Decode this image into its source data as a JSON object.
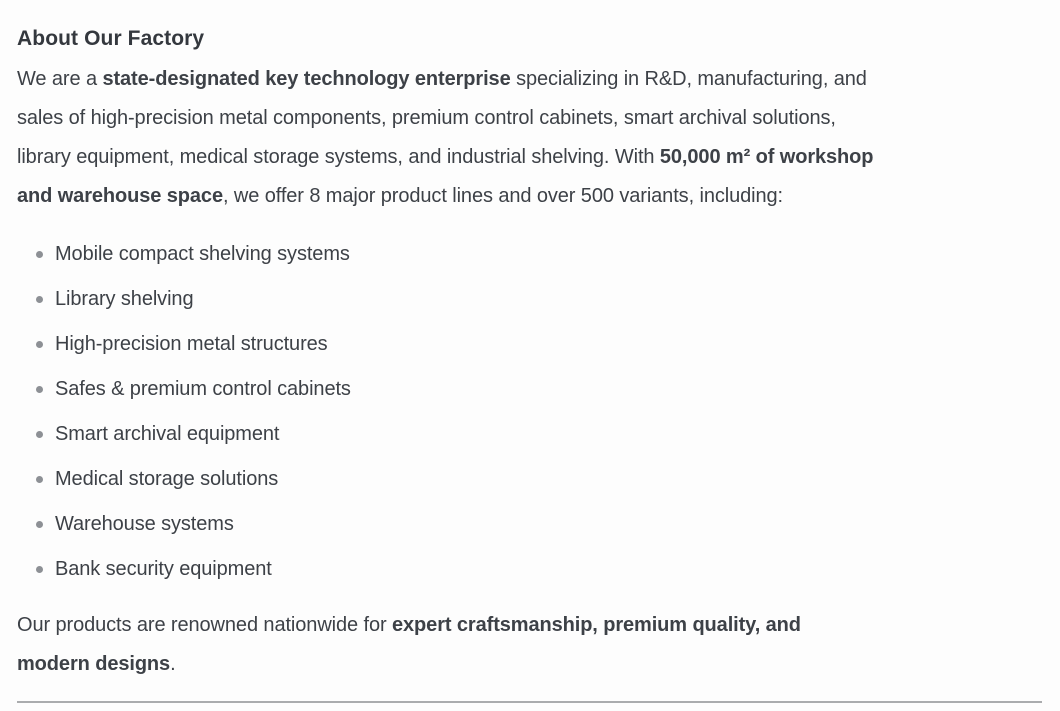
{
  "section": {
    "title": "About Our Factory"
  },
  "intro": {
    "lines": [
      [
        {
          "t": "We are a ",
          "b": 0
        },
        {
          "t": "state-designated key technology enterprise",
          "b": 1
        },
        {
          "t": " specializing in R&D, manufacturing, and",
          "b": 0
        }
      ],
      [
        {
          "t": "sales of high-precision metal components, premium control cabinets, smart archival solutions,",
          "b": 0
        }
      ],
      [
        {
          "t": "library equipment, medical storage systems, and industrial shelving. With ",
          "b": 0
        },
        {
          "t": "50,000 m² of workshop",
          "b": 1
        }
      ],
      [
        {
          "t": "and warehouse space",
          "b": 1
        },
        {
          "t": ", we offer 8 major product lines and over 500 variants, including:",
          "b": 0
        }
      ]
    ]
  },
  "list": {
    "items": [
      "Mobile compact shelving systems",
      "Library shelving",
      "High-precision metal structures",
      "Safes & premium control cabinets",
      "Smart archival equipment",
      "Medical storage solutions",
      "Warehouse systems",
      "Bank security equipment"
    ]
  },
  "closing": {
    "lines": [
      [
        {
          "t": "Our products are renowned nationwide for ",
          "b": 0
        },
        {
          "t": "expert craftsmanship, premium quality, and",
          "b": 1
        }
      ],
      [
        {
          "t": "modern designs",
          "b": 1
        },
        {
          "t": ".",
          "b": 0
        }
      ]
    ]
  },
  "colors": {
    "text": "#3d4147",
    "heading": "#34383e",
    "bullet": "#8d9095",
    "divider": "#aaacae",
    "background": "#fdfdfd"
  }
}
